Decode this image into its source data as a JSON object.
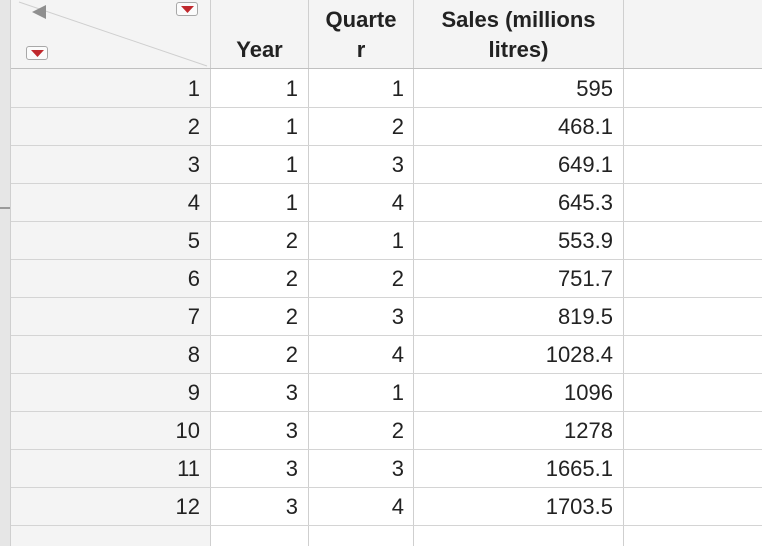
{
  "columns": [
    {
      "key": "year",
      "label_lines": [
        "Year"
      ]
    },
    {
      "key": "quarter",
      "label_lines": [
        "Quarte",
        "r"
      ]
    },
    {
      "key": "sales",
      "label_lines": [
        "Sales (millions",
        "litres)"
      ]
    }
  ],
  "rows": [
    {
      "n": "1",
      "year": "1",
      "quarter": "1",
      "sales": "595"
    },
    {
      "n": "2",
      "year": "1",
      "quarter": "2",
      "sales": "468.1"
    },
    {
      "n": "3",
      "year": "1",
      "quarter": "3",
      "sales": "649.1"
    },
    {
      "n": "4",
      "year": "1",
      "quarter": "4",
      "sales": "645.3"
    },
    {
      "n": "5",
      "year": "2",
      "quarter": "1",
      "sales": "553.9"
    },
    {
      "n": "6",
      "year": "2",
      "quarter": "2",
      "sales": "751.7"
    },
    {
      "n": "7",
      "year": "2",
      "quarter": "3",
      "sales": "819.5"
    },
    {
      "n": "8",
      "year": "2",
      "quarter": "4",
      "sales": "1028.4"
    },
    {
      "n": "9",
      "year": "3",
      "quarter": "1",
      "sales": "1096"
    },
    {
      "n": "10",
      "year": "3",
      "quarter": "2",
      "sales": "1278"
    },
    {
      "n": "11",
      "year": "3",
      "quarter": "3",
      "sales": "1665.1"
    },
    {
      "n": "12",
      "year": "3",
      "quarter": "4",
      "sales": "1703.5"
    }
  ],
  "icons": {
    "collapse": "triangle-left-icon",
    "table_menu": "dropdown-triangle-icon",
    "rows_menu": "dropdown-triangle-icon"
  },
  "colors": {
    "menu_triangle": "#c0282d",
    "header_bg": "#f4f4f4"
  }
}
